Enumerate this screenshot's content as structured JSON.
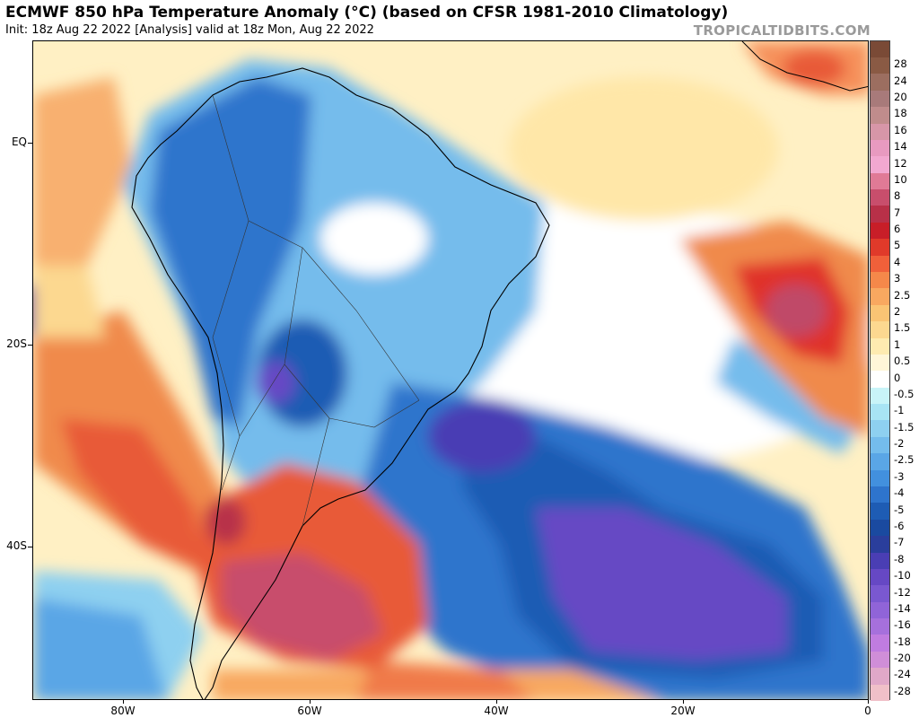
{
  "header": {
    "title": "ECMWF 850 hPa Temperature Anomaly (°C) (based on CFSR 1981-2010 Climatology)",
    "subtitle": "Init: 18z Aug 22 2022   [Analysis]   valid at 18z Mon, Aug 22 2022",
    "brand": "TROPICALTIDBITS.COM"
  },
  "axes": {
    "lat_labels": [
      "EQ",
      "20S",
      "40S"
    ],
    "lon_labels": [
      "80W",
      "60W",
      "40W",
      "20W",
      "0"
    ]
  },
  "colorbar": {
    "labels": [
      "28",
      "24",
      "20",
      "18",
      "16",
      "14",
      "12",
      "10",
      "8",
      "7",
      "6",
      "5",
      "4",
      "3",
      "2.5",
      "2",
      "1.5",
      "1",
      "0.5",
      "0",
      "-0.5",
      "-1",
      "-1.5",
      "-2",
      "-2.5",
      "-3",
      "-4",
      "-5",
      "-6",
      "-7",
      "-8",
      "-10",
      "-12",
      "-14",
      "-16",
      "-18",
      "-20",
      "-24",
      "-28"
    ],
    "colors": [
      "#8a5a44",
      "#9c6e60",
      "#a87a7a",
      "#c08c8c",
      "#d796a8",
      "#e89ac0",
      "#f2a8d0",
      "#e07a96",
      "#c84e6c",
      "#b83048",
      "#c81e28",
      "#e03a2a",
      "#f0603a",
      "#f5884a",
      "#f8a860",
      "#fac474",
      "#fcd890",
      "#feebb0",
      "#fff6d8",
      "#ffffff",
      "#c8f4f8",
      "#a8e4f4",
      "#8ed0f0",
      "#74bcec",
      "#5aa6e6",
      "#4290de",
      "#2e74cc",
      "#1e5cb4",
      "#1a4aa0",
      "#2a3e9c",
      "#4a3eb4",
      "#6648c4",
      "#7a58d0",
      "#9064d8",
      "#a670dc",
      "#c07ce0",
      "#d08ed8",
      "#e0a8c8",
      "#f0c0c8"
    ]
  }
}
